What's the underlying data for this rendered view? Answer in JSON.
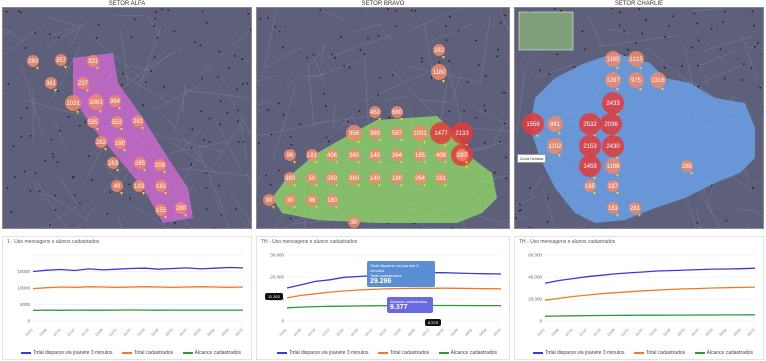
{
  "sectors": [
    {
      "title": "SETOR ALFA"
    },
    {
      "title": "SETOR BRAVO"
    },
    {
      "title": "SETOR CHARLIE"
    }
  ],
  "colors": {
    "map_bg": "#5e5f7a",
    "alfa_zone": "#d86bd8",
    "bravo_zone": "#8fd46a",
    "charlie_zone": "#6aa0e8",
    "bubble": "#f08a6a",
    "bubble_hot": "#e23b3b",
    "line_blue": "#3a3ad8",
    "line_orange": "#f07a2a",
    "line_green": "#2a9a3a"
  },
  "maps": {
    "alfa_bubbles": [
      {
        "label": "280"
      },
      {
        "label": "357"
      },
      {
        "label": "331"
      },
      {
        "label": "361"
      },
      {
        "label": "237"
      },
      {
        "label": "1031"
      },
      {
        "label": "1061"
      },
      {
        "label": "384"
      },
      {
        "label": "595"
      },
      {
        "label": "552"
      },
      {
        "label": "281"
      },
      {
        "label": "282"
      },
      {
        "label": "180"
      },
      {
        "label": "263"
      },
      {
        "label": "285"
      },
      {
        "label": "208"
      },
      {
        "label": "40"
      },
      {
        "label": "183"
      },
      {
        "label": "181"
      },
      {
        "label": "155"
      },
      {
        "label": "280"
      }
    ],
    "bravo_bubbles": [
      {
        "label": "282"
      },
      {
        "label": "1180"
      },
      {
        "label": "462"
      },
      {
        "label": "680"
      },
      {
        "label": "956"
      },
      {
        "label": "389"
      },
      {
        "label": "587"
      },
      {
        "label": "1031"
      },
      {
        "label": "1477"
      },
      {
        "label": "2133"
      },
      {
        "label": "1404"
      },
      {
        "label": "96"
      },
      {
        "label": "181"
      },
      {
        "label": "406"
      },
      {
        "label": "360"
      },
      {
        "label": "140"
      },
      {
        "label": "364"
      },
      {
        "label": "185"
      },
      {
        "label": "408"
      },
      {
        "label": "287"
      },
      {
        "label": "380"
      },
      {
        "label": "50"
      },
      {
        "label": "260"
      },
      {
        "label": "360"
      },
      {
        "label": "140"
      },
      {
        "label": "180"
      },
      {
        "label": "264"
      },
      {
        "label": "281"
      },
      {
        "label": "90"
      },
      {
        "label": "30"
      },
      {
        "label": "96"
      },
      {
        "label": "180"
      },
      {
        "label": "30"
      }
    ],
    "charlie_bubbles": [
      {
        "label": "1165"
      },
      {
        "label": "1215"
      },
      {
        "label": "1297"
      },
      {
        "label": "975"
      },
      {
        "label": "1316"
      },
      {
        "label": "2433"
      },
      {
        "label": "1556"
      },
      {
        "label": "981"
      },
      {
        "label": "2532"
      },
      {
        "label": "2036"
      },
      {
        "label": "1102"
      },
      {
        "label": "2153"
      },
      {
        "label": "2430"
      },
      {
        "label": "1459"
      },
      {
        "label": "1186"
      },
      {
        "label": "280"
      },
      {
        "label": "185"
      },
      {
        "label": "187"
      },
      {
        "label": "161"
      },
      {
        "label": "281"
      }
    ],
    "charlie_label": "Zona Urbana"
  },
  "charts": [
    {
      "title": "1 - Uso mensagens e alunos cadastrados",
      "ylabels": [
        "",
        "15000",
        "10000",
        "5000",
        "0"
      ]
    },
    {
      "title": "TH - Uso mensagens e alunos cadastrados",
      "ylabels": [
        "30.000",
        "20.000",
        "10.000",
        "0"
      ],
      "tip1_title": "Total disparos via joanete 3 minutos",
      "tip1_value": "29.296",
      "tip1_sub": "Total cadastrados",
      "tip2_title": "Alcance cadastrados",
      "tip2_value": "9.377",
      "tip_dark_left": "11.302",
      "tip_dark_right": "8.578"
    },
    {
      "title": "TH - Uso mensagens e alunos cadastrados",
      "ylabels": [
        "60.000",
        "40.000",
        "20.000",
        "0"
      ]
    }
  ],
  "legend": {
    "blue": "Total disparos via joanete 3 minutos",
    "orange": "Total cadastrados",
    "green": "Alcance cadastrados"
  },
  "chart_data": [
    {
      "type": "line",
      "x": [
        "01/01",
        "01/08",
        "01/15",
        "01/22",
        "01/29",
        "02/05",
        "02/12",
        "02/19",
        "02/26",
        "03/05",
        "03/12",
        "03/19",
        "03/26",
        "04/02",
        "04/09",
        "04/16"
      ],
      "series": [
        {
          "name": "Total disparos via joanete 3 minutos",
          "values": [
            15000,
            15400,
            15600,
            15300,
            15800,
            15500,
            15700,
            15900,
            16000,
            15700,
            15900,
            16100,
            15800,
            16000,
            16200,
            16100
          ]
        },
        {
          "name": "Total cadastrados",
          "values": [
            9800,
            10100,
            10300,
            10200,
            10400,
            10300,
            10200,
            10300,
            10400,
            10300,
            10200,
            10300,
            10400,
            10300,
            10200,
            10300
          ]
        },
        {
          "name": "Alcance cadastrados",
          "values": [
            3200,
            3300,
            3250,
            3300,
            3280,
            3260,
            3300,
            3320,
            3300,
            3280,
            3300,
            3290,
            3300,
            3310,
            3300,
            3300
          ]
        }
      ],
      "ylim": [
        0,
        20000
      ]
    },
    {
      "type": "line",
      "x": [
        "01/01",
        "01/08",
        "01/15",
        "01/22",
        "01/29",
        "02/05",
        "02/12",
        "02/19",
        "02/26",
        "03/05",
        "03/12",
        "03/19",
        "03/26",
        "04/02",
        "04/09",
        "04/16"
      ],
      "series": [
        {
          "name": "Total disparos via joanete 3 minutos",
          "values": [
            20000,
            22000,
            24000,
            25000,
            26500,
            27000,
            27500,
            28000,
            28500,
            29000,
            29300,
            29300,
            29000,
            28800,
            28600,
            28500
          ]
        },
        {
          "name": "Total cadastrados",
          "values": [
            14000,
            15500,
            16500,
            17500,
            18200,
            18800,
            19200,
            19500,
            19700,
            19800,
            19800,
            19900,
            19800,
            19700,
            19600,
            19500
          ]
        },
        {
          "name": "Alcance cadastrados",
          "values": [
            8000,
            8400,
            8700,
            8900,
            9000,
            9100,
            9200,
            9300,
            9350,
            9377,
            9380,
            9380,
            9370,
            9360,
            9350,
            9340
          ]
        }
      ],
      "ylim": [
        0,
        40000
      ]
    },
    {
      "type": "line",
      "x": [
        "01/01",
        "01/08",
        "01/15",
        "01/22",
        "01/29",
        "02/05",
        "02/12",
        "02/19",
        "02/26",
        "03/05",
        "03/12",
        "03/19",
        "03/26",
        "04/02",
        "04/09",
        "04/16"
      ],
      "series": [
        {
          "name": "Total disparos via joanete 3 minutos",
          "values": [
            40000,
            43000,
            45000,
            47000,
            48500,
            50000,
            51000,
            52000,
            53000,
            53500,
            54000,
            54500,
            55000,
            55200,
            55500,
            56000
          ]
        },
        {
          "name": "Total cadastrados",
          "values": [
            22000,
            24000,
            26000,
            27500,
            29000,
            30000,
            31000,
            32000,
            32800,
            33500,
            34000,
            34500,
            35000,
            35300,
            35600,
            36000
          ]
        },
        {
          "name": "Alcance cadastrados",
          "values": [
            5000,
            5300,
            5500,
            5700,
            5800,
            5900,
            6000,
            6100,
            6200,
            6250,
            6300,
            6350,
            6400,
            6450,
            6500,
            6550
          ]
        }
      ],
      "ylim": [
        0,
        70000
      ]
    }
  ]
}
